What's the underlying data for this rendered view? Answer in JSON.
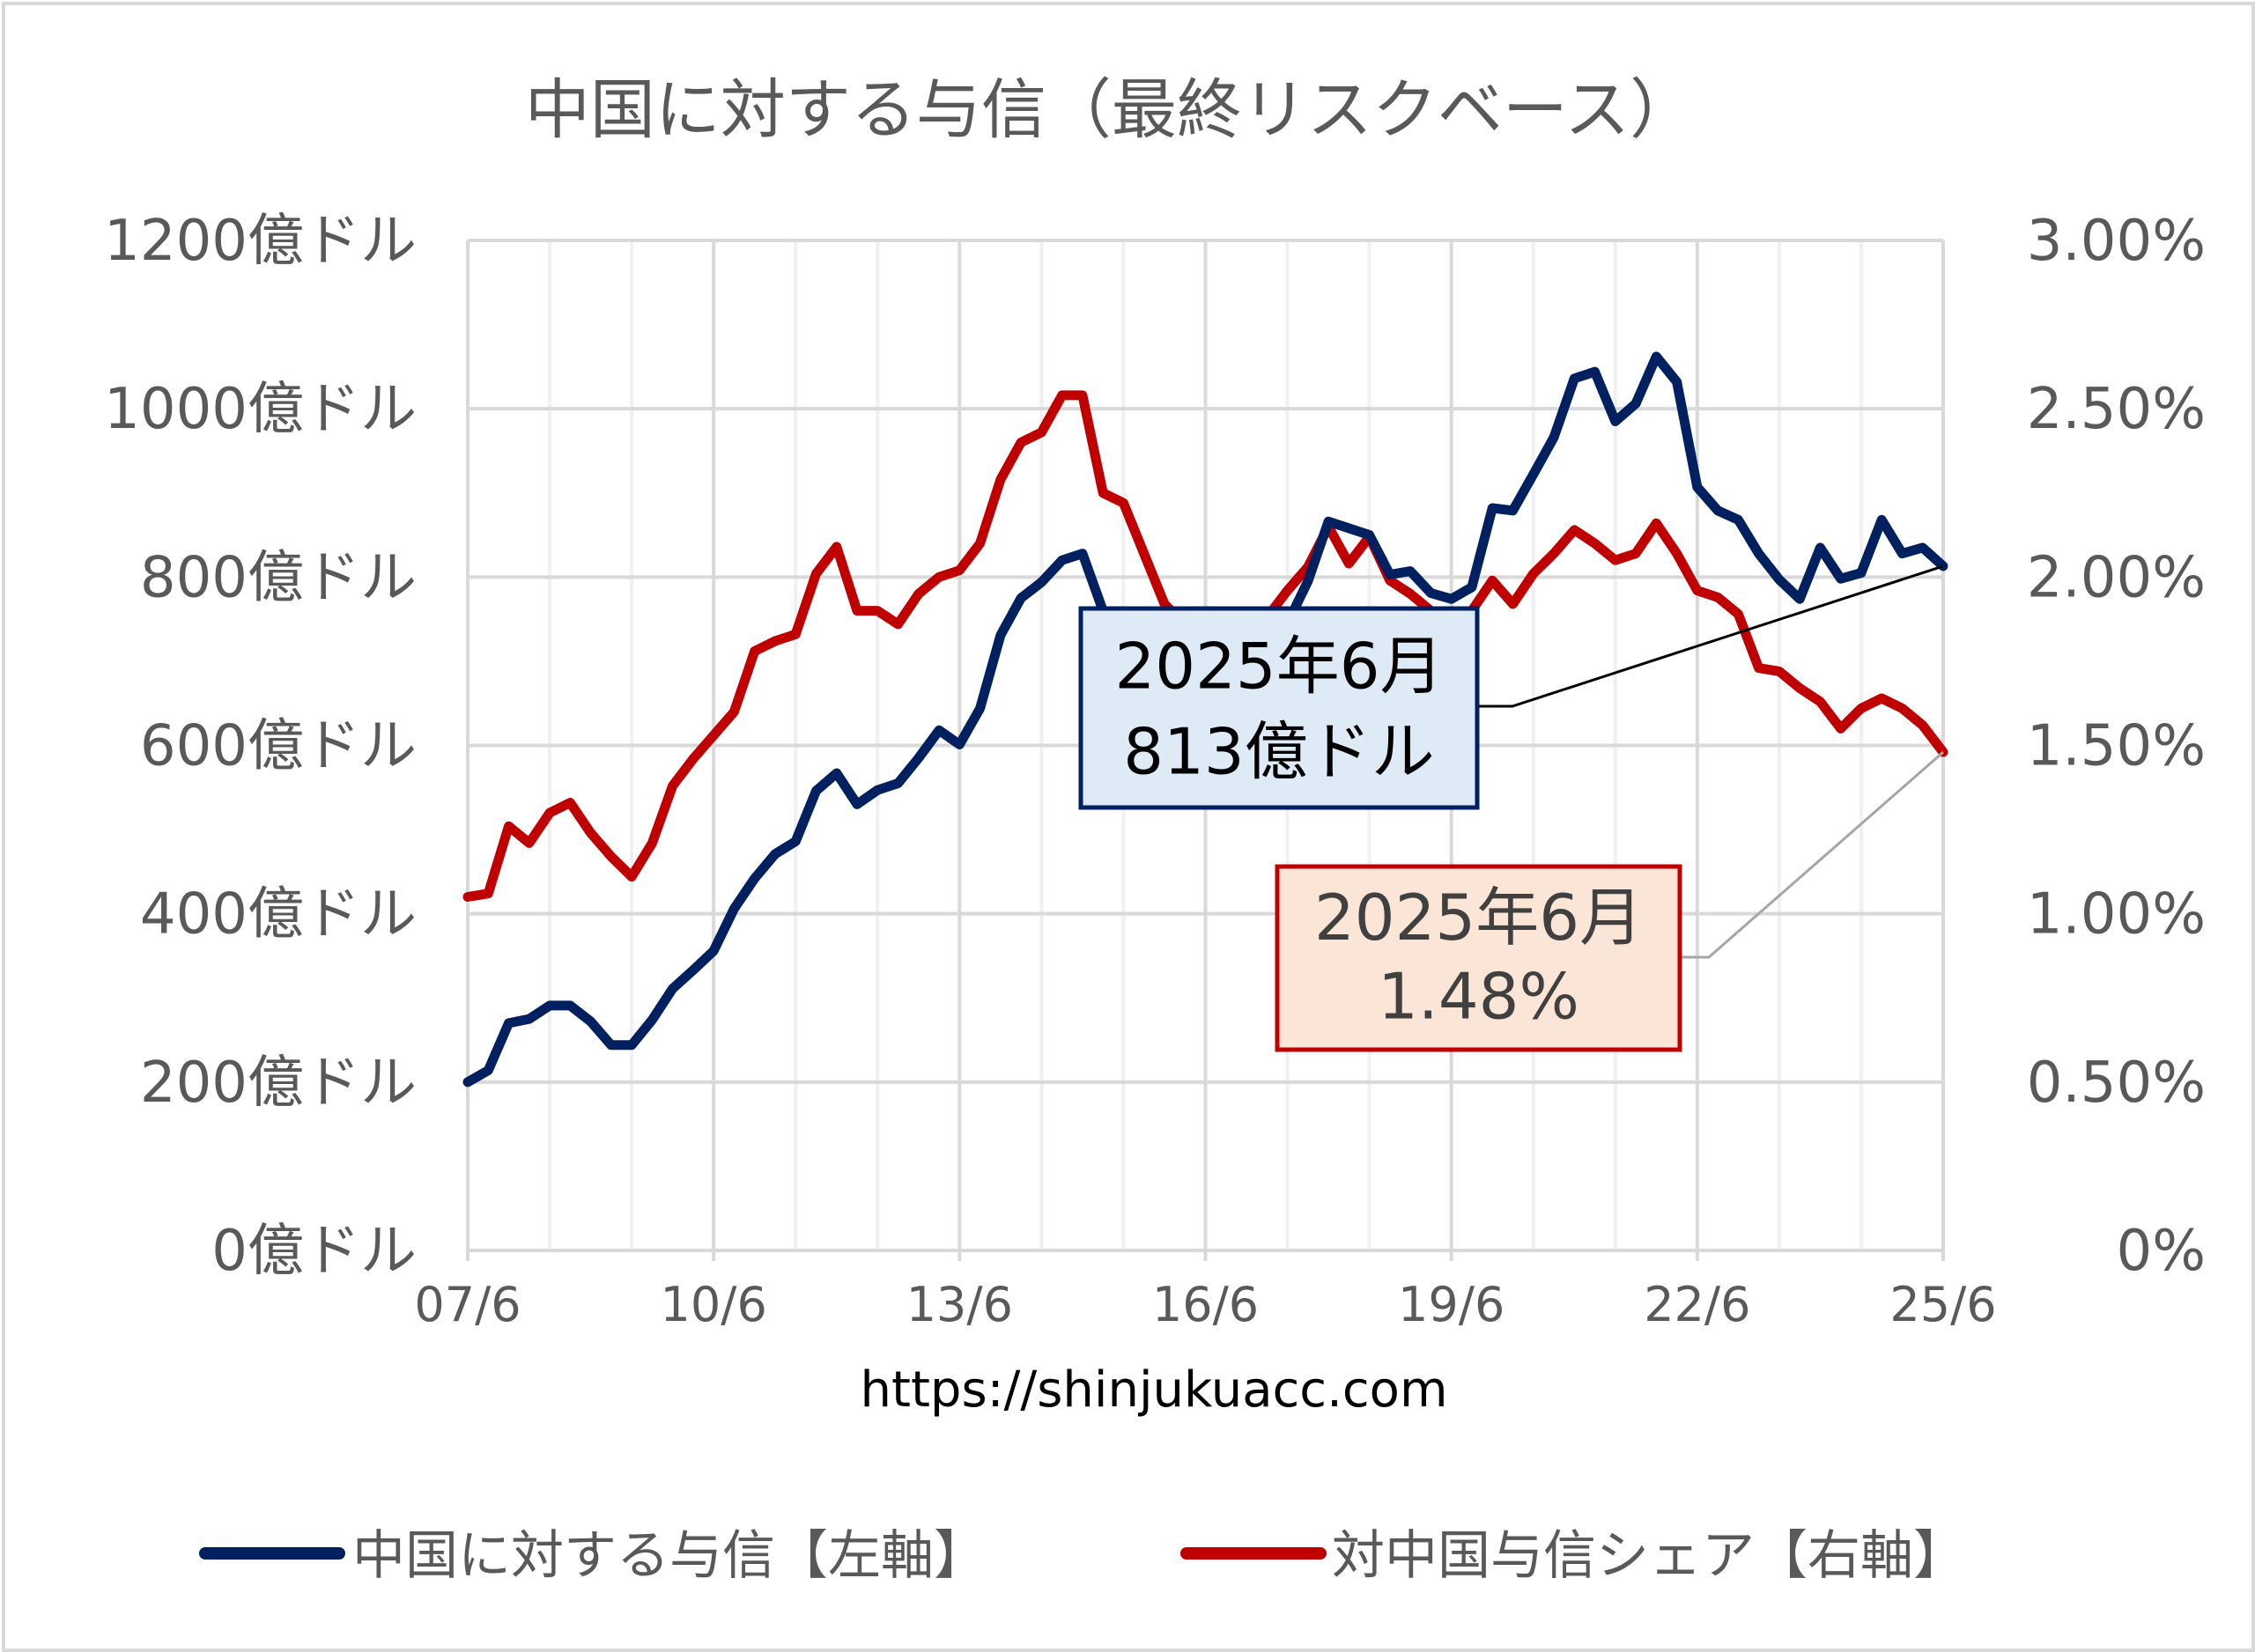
{
  "chart_data": {
    "type": "line",
    "title": "中国に対する与信（最終リスクベース）",
    "source_url": "https://shinjukuacc.com",
    "x_tick_labels": [
      "07/6",
      "10/6",
      "13/6",
      "16/6",
      "19/6",
      "22/6",
      "25/6"
    ],
    "x_frequency": "quarterly",
    "x_start": "2007-06",
    "x_end": "2025-06",
    "y_left": {
      "label": "",
      "ylim": [
        0,
        1200
      ],
      "ticks": [
        0,
        200,
        400,
        600,
        800,
        1000,
        1200
      ],
      "tick_labels": [
        "0億ドル",
        "200億ドル",
        "400億ドル",
        "600億ドル",
        "800億ドル",
        "1000億ドル",
        "1200億ドル"
      ]
    },
    "y_right": {
      "label": "",
      "ylim": [
        0,
        3.0
      ],
      "ticks": [
        0,
        0.5,
        1.0,
        1.5,
        2.0,
        2.5,
        3.0
      ],
      "tick_labels": [
        "0%",
        "0.50%",
        "1.00%",
        "1.50%",
        "2.00%",
        "2.50%",
        "3.00%"
      ]
    },
    "grid": true,
    "legend_position": "bottom",
    "series": [
      {
        "name": "中国に対する与信【左軸】",
        "axis": "left",
        "color": "#002060",
        "values": [
          200,
          214,
          270,
          275,
          291,
          291,
          272,
          244,
          244,
          274,
          311,
          333,
          356,
          406,
          442,
          471,
          486,
          546,
          567,
          530,
          547,
          555,
          585,
          618,
          601,
          644,
          731,
          775,
          794,
          820,
          828,
          760,
          745,
          735,
          720,
          705,
          700,
          705,
          715,
          730,
          745,
          795,
          866,
          858,
          850,
          803,
          807,
          781,
          774,
          788,
          882,
          879,
          922,
          966,
          1036,
          1044,
          985,
          1006,
          1062,
          1032,
          907,
          879,
          868,
          828,
          797,
          774,
          835,
          798,
          805,
          868,
          828,
          835,
          813
        ]
      },
      {
        "name": "対中国与信シェア【右軸】",
        "axis": "right",
        "color": "#C00000",
        "values": [
          1.05,
          1.06,
          1.26,
          1.21,
          1.3,
          1.33,
          1.24,
          1.17,
          1.11,
          1.21,
          1.38,
          1.46,
          1.53,
          1.6,
          1.78,
          1.81,
          1.83,
          2.01,
          2.09,
          1.9,
          1.9,
          1.86,
          1.95,
          2.0,
          2.02,
          2.1,
          2.29,
          2.4,
          2.43,
          2.54,
          2.54,
          2.25,
          2.22,
          2.07,
          1.92,
          1.86,
          1.82,
          1.8,
          1.82,
          1.88,
          1.96,
          2.03,
          2.15,
          2.04,
          2.12,
          1.99,
          1.95,
          1.9,
          1.88,
          1.9,
          1.99,
          1.92,
          2.01,
          2.07,
          2.14,
          2.1,
          2.05,
          2.07,
          2.16,
          2.07,
          1.96,
          1.94,
          1.89,
          1.73,
          1.72,
          1.67,
          1.63,
          1.55,
          1.61,
          1.64,
          1.61,
          1.56,
          1.48
        ]
      }
    ],
    "annotations": [
      {
        "series": "中国に対する与信【左軸】",
        "line1": "2025年6月",
        "line2": "813億ドル",
        "point_index": 72,
        "fill": "#DEEAF6",
        "border": "#002060",
        "text_color": "#000000",
        "leader_color": "#000000"
      },
      {
        "series": "対中国与信シェア【右軸】",
        "line1": "2025年6月",
        "line2": "1.48%",
        "point_index": 72,
        "fill": "#FBE5D6",
        "border": "#C00000",
        "text_color": "#404040",
        "leader_color": "#A6A6A6"
      }
    ]
  },
  "legend": {
    "items": [
      {
        "label": "中国に対する与信【左軸】",
        "color": "#002060"
      },
      {
        "label": "対中国与信シェア【右軸】",
        "color": "#C00000"
      }
    ]
  }
}
